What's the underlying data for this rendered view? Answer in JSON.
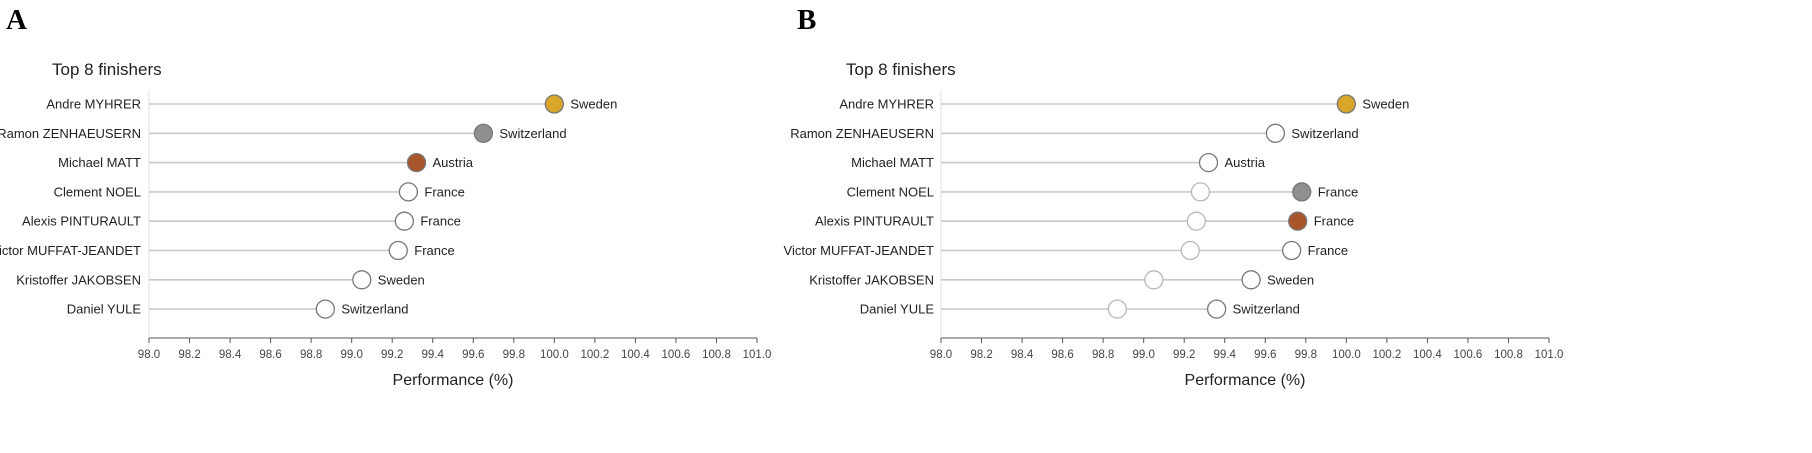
{
  "chart_data": [
    {
      "panel_label": "A",
      "type": "scatter",
      "title": "Top 8 finishers",
      "xlabel": "Performance (%)",
      "xlim": [
        98.0,
        101.0
      ],
      "x_ticks": [
        "98.0",
        "98.2",
        "98.4",
        "98.6",
        "98.8",
        "99.0",
        "99.2",
        "99.4",
        "99.6",
        "99.8",
        "100.0",
        "100.2",
        "100.4",
        "100.6",
        "100.8",
        "101.0"
      ],
      "grid": false,
      "rows": [
        {
          "athlete": "Andre MYHRER",
          "country": "Sweden",
          "values": [
            100.0
          ],
          "fills": [
            "#d9a52b"
          ]
        },
        {
          "athlete": "Ramon ZENHAEUSERN",
          "country": "Switzerland",
          "values": [
            99.65
          ],
          "fills": [
            "#8f8f8f"
          ]
        },
        {
          "athlete": "Michael MATT",
          "country": "Austria",
          "values": [
            99.32
          ],
          "fills": [
            "#a9552b"
          ]
        },
        {
          "athlete": "Clement NOEL",
          "country": "France",
          "values": [
            99.28
          ],
          "fills": [
            "#ffffff"
          ]
        },
        {
          "athlete": "Alexis PINTURAULT",
          "country": "France",
          "values": [
            99.26
          ],
          "fills": [
            "#ffffff"
          ]
        },
        {
          "athlete": "Victor MUFFAT-JEANDET",
          "country": "France",
          "values": [
            99.23
          ],
          "fills": [
            "#ffffff"
          ]
        },
        {
          "athlete": "Kristoffer JAKOBSEN",
          "country": "Sweden",
          "values": [
            99.05
          ],
          "fills": [
            "#ffffff"
          ]
        },
        {
          "athlete": "Daniel YULE",
          "country": "Switzerland",
          "values": [
            98.87
          ],
          "fills": [
            "#ffffff"
          ]
        }
      ]
    },
    {
      "panel_label": "B",
      "type": "scatter",
      "title": "Top 8 finishers",
      "xlabel": "Performance (%)",
      "xlim": [
        98.0,
        101.0
      ],
      "x_ticks": [
        "98.0",
        "98.2",
        "98.4",
        "98.6",
        "98.8",
        "99.0",
        "99.2",
        "99.4",
        "99.6",
        "99.8",
        "100.0",
        "100.2",
        "100.4",
        "100.6",
        "100.8",
        "101.0"
      ],
      "grid": false,
      "rows": [
        {
          "athlete": "Andre MYHRER",
          "country": "Sweden",
          "values": [
            100.0
          ],
          "fills": [
            "#d9a52b"
          ]
        },
        {
          "athlete": "Ramon ZENHAEUSERN",
          "country": "Switzerland",
          "values": [
            99.65
          ],
          "fills": [
            "#ffffff"
          ]
        },
        {
          "athlete": "Michael MATT",
          "country": "Austria",
          "values": [
            99.32
          ],
          "fills": [
            "#ffffff"
          ]
        },
        {
          "athlete": "Clement NOEL",
          "country": "France",
          "values": [
            99.28,
            99.78
          ],
          "fills": [
            "#ffffff",
            "#8f8f8f"
          ]
        },
        {
          "athlete": "Alexis PINTURAULT",
          "country": "France",
          "values": [
            99.26,
            99.76
          ],
          "fills": [
            "#ffffff",
            "#a9552b"
          ]
        },
        {
          "athlete": "Victor MUFFAT-JEANDET",
          "country": "France",
          "values": [
            99.23,
            99.73
          ],
          "fills": [
            "#ffffff",
            "#ffffff"
          ]
        },
        {
          "athlete": "Kristoffer JAKOBSEN",
          "country": "Sweden",
          "values": [
            99.05,
            99.53
          ],
          "fills": [
            "#ffffff",
            "#ffffff"
          ]
        },
        {
          "athlete": "Daniel YULE",
          "country": "Switzerland",
          "values": [
            98.87,
            99.36
          ],
          "fills": [
            "#ffffff",
            "#ffffff"
          ]
        }
      ]
    }
  ],
  "colors": {
    "line": "#c8c8c8",
    "marker_stroke": "#777777",
    "faded_marker_stroke": "#b8b8b8"
  }
}
